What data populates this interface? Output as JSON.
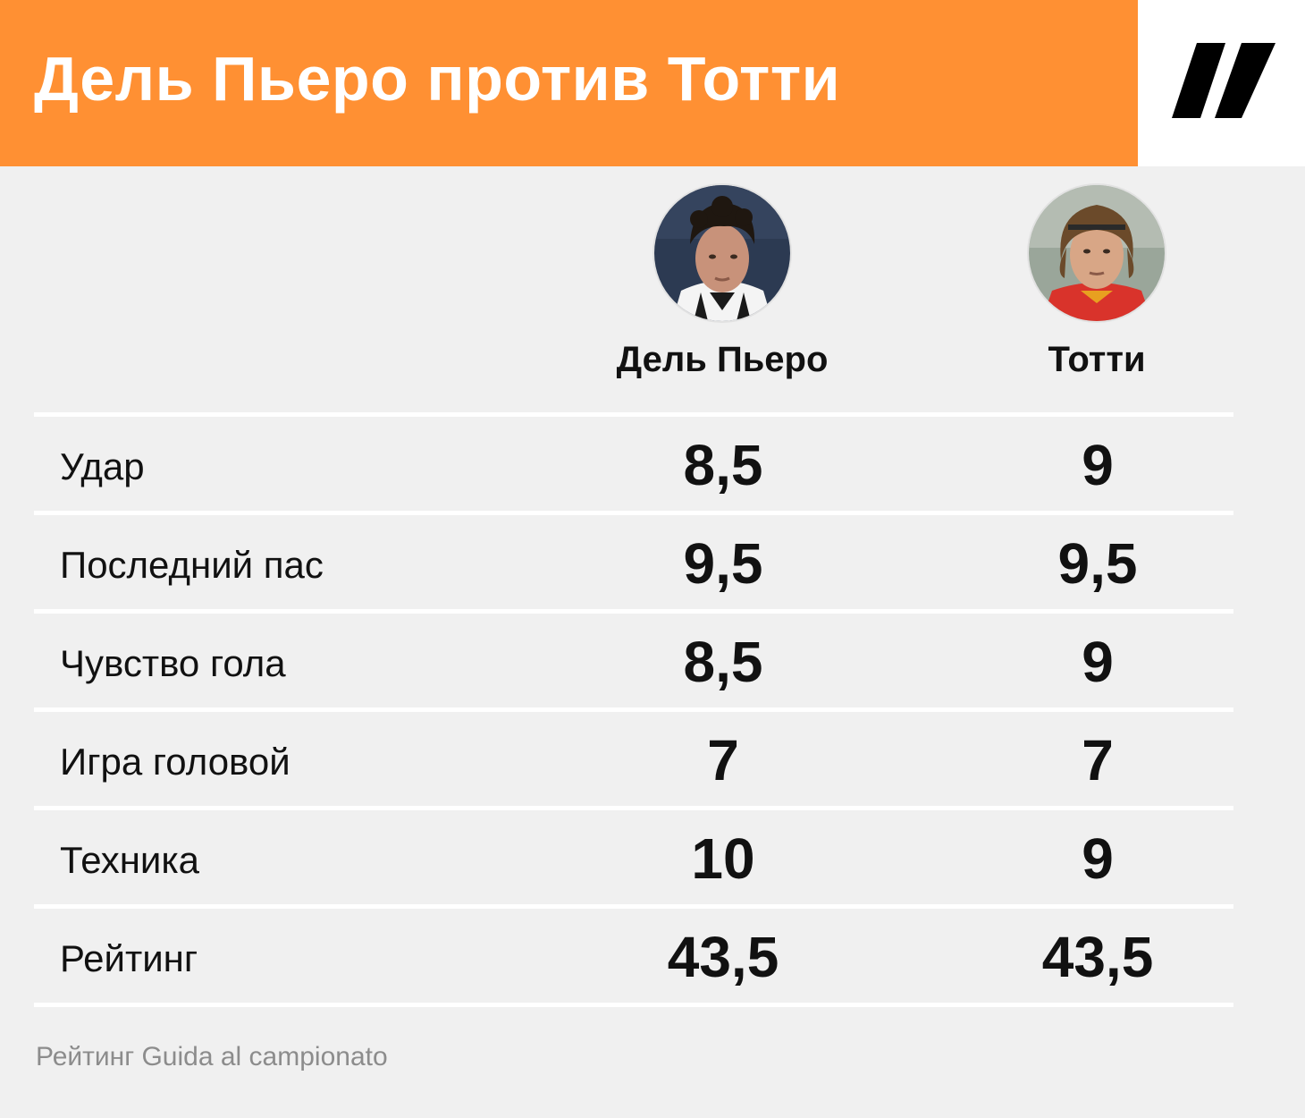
{
  "header": {
    "title": "Дель Пьеро против Тотти",
    "accent_color": "#ff9033",
    "logo_icon": "slash-logo-icon"
  },
  "players": [
    {
      "name": "Дель Пьеро",
      "avatar_icon": "player-avatar-icon",
      "shirt_color": "#ffffff"
    },
    {
      "name": "Тотти",
      "avatar_icon": "player-avatar-icon",
      "shirt_color": "#d9332b"
    }
  ],
  "table": {
    "rows": [
      {
        "label": "Удар",
        "a": "8,5",
        "b": "9"
      },
      {
        "label": "Последний пас",
        "a": "9,5",
        "b": "9,5"
      },
      {
        "label": "Чувство гола",
        "a": "8,5",
        "b": "9"
      },
      {
        "label": "Игра головой",
        "a": "7",
        "b": "7"
      },
      {
        "label": "Техника",
        "a": "10",
        "b": "9"
      },
      {
        "label": "Рейтинг",
        "a": "43,5",
        "b": "43,5"
      }
    ]
  },
  "footer": {
    "source": "Рейтинг Guida al campionato"
  }
}
